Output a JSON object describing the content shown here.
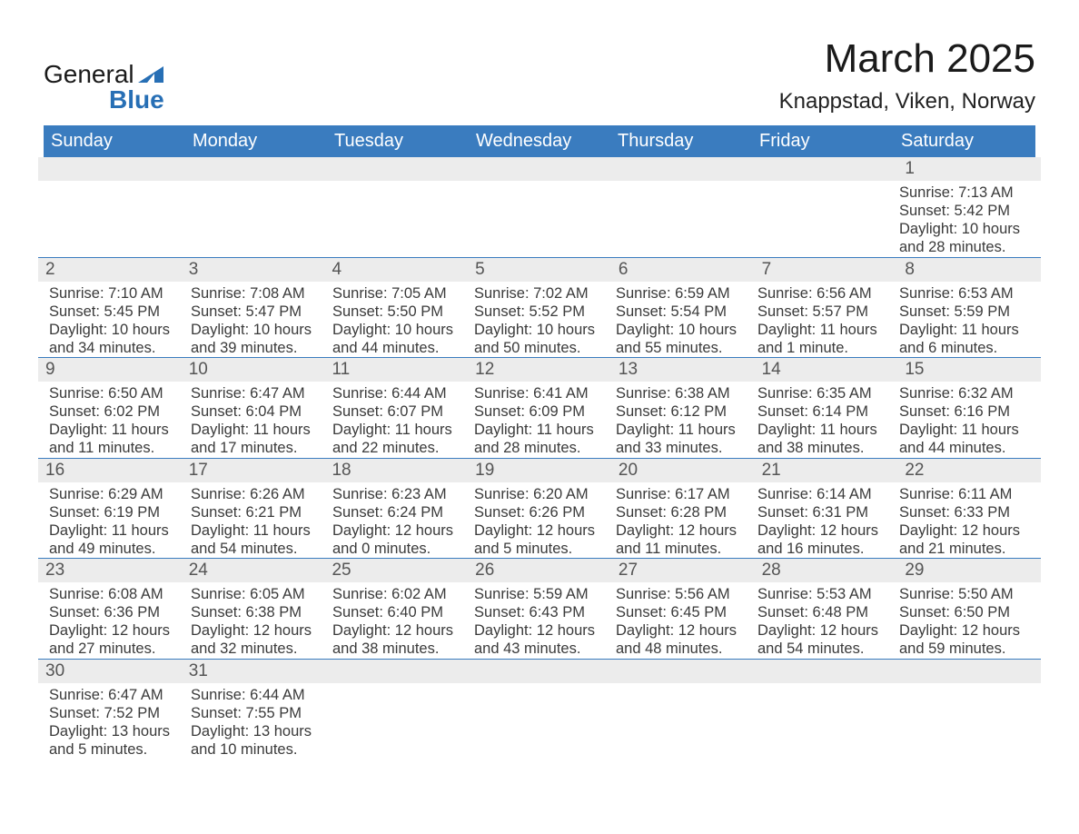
{
  "logo": {
    "word1": "General",
    "word2": "Blue"
  },
  "header": {
    "month_title": "March 2025",
    "location": "Knappstad, Viken, Norway"
  },
  "colors": {
    "header_bg": "#3a7cbf",
    "header_text": "#ffffff",
    "strip_bg": "#ececec",
    "border": "#3a7cbf",
    "body_text": "#3a3a3a",
    "logo_blue": "#276fb5"
  },
  "weekdays": [
    "Sunday",
    "Monday",
    "Tuesday",
    "Wednesday",
    "Thursday",
    "Friday",
    "Saturday"
  ],
  "weeks": [
    [
      null,
      null,
      null,
      null,
      null,
      null,
      {
        "n": "1",
        "sunrise": "7:13 AM",
        "sunset": "5:42 PM",
        "daylight": "10 hours and 28 minutes."
      }
    ],
    [
      {
        "n": "2",
        "sunrise": "7:10 AM",
        "sunset": "5:45 PM",
        "daylight": "10 hours and 34 minutes."
      },
      {
        "n": "3",
        "sunrise": "7:08 AM",
        "sunset": "5:47 PM",
        "daylight": "10 hours and 39 minutes."
      },
      {
        "n": "4",
        "sunrise": "7:05 AM",
        "sunset": "5:50 PM",
        "daylight": "10 hours and 44 minutes."
      },
      {
        "n": "5",
        "sunrise": "7:02 AM",
        "sunset": "5:52 PM",
        "daylight": "10 hours and 50 minutes."
      },
      {
        "n": "6",
        "sunrise": "6:59 AM",
        "sunset": "5:54 PM",
        "daylight": "10 hours and 55 minutes."
      },
      {
        "n": "7",
        "sunrise": "6:56 AM",
        "sunset": "5:57 PM",
        "daylight": "11 hours and 1 minute."
      },
      {
        "n": "8",
        "sunrise": "6:53 AM",
        "sunset": "5:59 PM",
        "daylight": "11 hours and 6 minutes."
      }
    ],
    [
      {
        "n": "9",
        "sunrise": "6:50 AM",
        "sunset": "6:02 PM",
        "daylight": "11 hours and 11 minutes."
      },
      {
        "n": "10",
        "sunrise": "6:47 AM",
        "sunset": "6:04 PM",
        "daylight": "11 hours and 17 minutes."
      },
      {
        "n": "11",
        "sunrise": "6:44 AM",
        "sunset": "6:07 PM",
        "daylight": "11 hours and 22 minutes."
      },
      {
        "n": "12",
        "sunrise": "6:41 AM",
        "sunset": "6:09 PM",
        "daylight": "11 hours and 28 minutes."
      },
      {
        "n": "13",
        "sunrise": "6:38 AM",
        "sunset": "6:12 PM",
        "daylight": "11 hours and 33 minutes."
      },
      {
        "n": "14",
        "sunrise": "6:35 AM",
        "sunset": "6:14 PM",
        "daylight": "11 hours and 38 minutes."
      },
      {
        "n": "15",
        "sunrise": "6:32 AM",
        "sunset": "6:16 PM",
        "daylight": "11 hours and 44 minutes."
      }
    ],
    [
      {
        "n": "16",
        "sunrise": "6:29 AM",
        "sunset": "6:19 PM",
        "daylight": "11 hours and 49 minutes."
      },
      {
        "n": "17",
        "sunrise": "6:26 AM",
        "sunset": "6:21 PM",
        "daylight": "11 hours and 54 minutes."
      },
      {
        "n": "18",
        "sunrise": "6:23 AM",
        "sunset": "6:24 PM",
        "daylight": "12 hours and 0 minutes."
      },
      {
        "n": "19",
        "sunrise": "6:20 AM",
        "sunset": "6:26 PM",
        "daylight": "12 hours and 5 minutes."
      },
      {
        "n": "20",
        "sunrise": "6:17 AM",
        "sunset": "6:28 PM",
        "daylight": "12 hours and 11 minutes."
      },
      {
        "n": "21",
        "sunrise": "6:14 AM",
        "sunset": "6:31 PM",
        "daylight": "12 hours and 16 minutes."
      },
      {
        "n": "22",
        "sunrise": "6:11 AM",
        "sunset": "6:33 PM",
        "daylight": "12 hours and 21 minutes."
      }
    ],
    [
      {
        "n": "23",
        "sunrise": "6:08 AM",
        "sunset": "6:36 PM",
        "daylight": "12 hours and 27 minutes."
      },
      {
        "n": "24",
        "sunrise": "6:05 AM",
        "sunset": "6:38 PM",
        "daylight": "12 hours and 32 minutes."
      },
      {
        "n": "25",
        "sunrise": "6:02 AM",
        "sunset": "6:40 PM",
        "daylight": "12 hours and 38 minutes."
      },
      {
        "n": "26",
        "sunrise": "5:59 AM",
        "sunset": "6:43 PM",
        "daylight": "12 hours and 43 minutes."
      },
      {
        "n": "27",
        "sunrise": "5:56 AM",
        "sunset": "6:45 PM",
        "daylight": "12 hours and 48 minutes."
      },
      {
        "n": "28",
        "sunrise": "5:53 AM",
        "sunset": "6:48 PM",
        "daylight": "12 hours and 54 minutes."
      },
      {
        "n": "29",
        "sunrise": "5:50 AM",
        "sunset": "6:50 PM",
        "daylight": "12 hours and 59 minutes."
      }
    ],
    [
      {
        "n": "30",
        "sunrise": "6:47 AM",
        "sunset": "7:52 PM",
        "daylight": "13 hours and 5 minutes."
      },
      {
        "n": "31",
        "sunrise": "6:44 AM",
        "sunset": "7:55 PM",
        "daylight": "13 hours and 10 minutes."
      },
      null,
      null,
      null,
      null,
      null
    ]
  ],
  "labels": {
    "sunrise_prefix": "Sunrise: ",
    "sunset_prefix": "Sunset: ",
    "daylight_prefix": "Daylight: "
  }
}
